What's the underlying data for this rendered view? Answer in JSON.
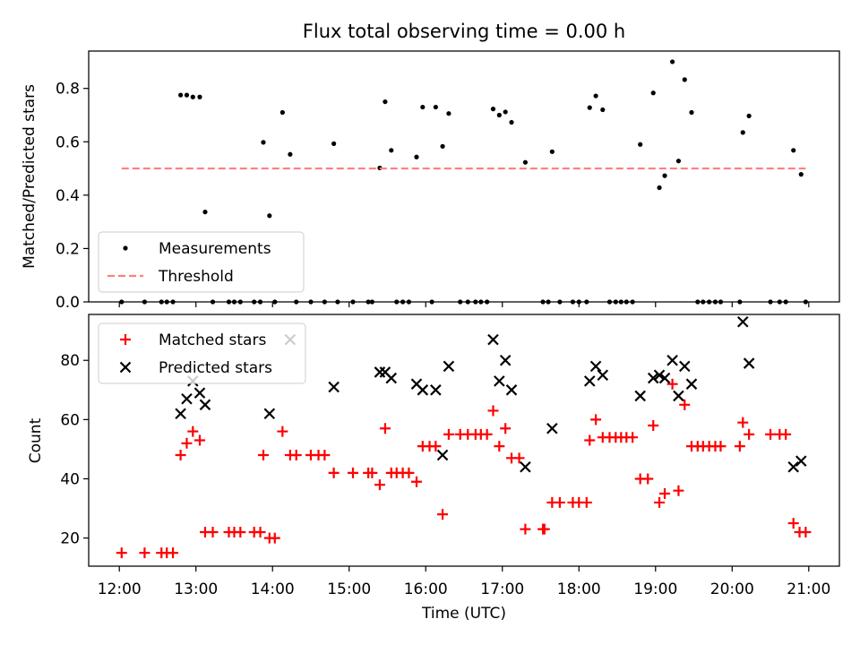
{
  "figure": {
    "title": "Flux total observing time = 0.00 h"
  },
  "chart_data": [
    {
      "type": "scatter",
      "ylabel": "Matched/Predicted stars",
      "xlim": [
        11.6,
        21.4
      ],
      "ylim": [
        0,
        0.94
      ],
      "yticks": [
        0.0,
        0.2,
        0.4,
        0.6,
        0.8
      ],
      "ytick_labels": [
        "0.0",
        "0.2",
        "0.4",
        "0.6",
        "0.8"
      ],
      "legend": {
        "placement": "lower-left",
        "entries": [
          "Measurements",
          "Threshold"
        ]
      },
      "series": [
        {
          "name": "Measurements",
          "color": "#000000",
          "marker": "dot",
          "points": [
            [
              12.03,
              0.0
            ],
            [
              12.33,
              0.0
            ],
            [
              12.55,
              0.0
            ],
            [
              12.62,
              0.0
            ],
            [
              12.7,
              0.0
            ],
            [
              12.8,
              0.775
            ],
            [
              12.88,
              0.775
            ],
            [
              12.96,
              0.768
            ],
            [
              13.05,
              0.768
            ],
            [
              13.12,
              0.337
            ],
            [
              13.22,
              0.0
            ],
            [
              13.43,
              0.0
            ],
            [
              13.5,
              0.0
            ],
            [
              13.58,
              0.0
            ],
            [
              13.76,
              0.0
            ],
            [
              13.84,
              0.0
            ],
            [
              13.88,
              0.598
            ],
            [
              13.96,
              0.323
            ],
            [
              14.03,
              0.0
            ],
            [
              14.13,
              0.71
            ],
            [
              14.23,
              0.553
            ],
            [
              14.31,
              0.0
            ],
            [
              14.5,
              0.0
            ],
            [
              14.68,
              0.0
            ],
            [
              14.8,
              0.593
            ],
            [
              14.85,
              0.0
            ],
            [
              15.05,
              0.0
            ],
            [
              15.25,
              0.0
            ],
            [
              15.3,
              0.0
            ],
            [
              15.4,
              0.502
            ],
            [
              15.47,
              0.75
            ],
            [
              15.55,
              0.568
            ],
            [
              15.62,
              0.0
            ],
            [
              15.7,
              0.0
            ],
            [
              15.78,
              0.0
            ],
            [
              15.88,
              0.543
            ],
            [
              15.96,
              0.73
            ],
            [
              16.08,
              0.0
            ],
            [
              16.13,
              0.73
            ],
            [
              16.22,
              0.583
            ],
            [
              16.3,
              0.706
            ],
            [
              16.45,
              0.0
            ],
            [
              16.55,
              0.0
            ],
            [
              16.65,
              0.0
            ],
            [
              16.72,
              0.0
            ],
            [
              16.8,
              0.0
            ],
            [
              16.88,
              0.723
            ],
            [
              16.96,
              0.7
            ],
            [
              17.04,
              0.712
            ],
            [
              17.12,
              0.673
            ],
            [
              17.3,
              0.523
            ],
            [
              17.53,
              0.0
            ],
            [
              17.6,
              0.0
            ],
            [
              17.65,
              0.563
            ],
            [
              17.75,
              0.0
            ],
            [
              17.92,
              0.0
            ],
            [
              18.0,
              0.0
            ],
            [
              18.1,
              0.0
            ],
            [
              18.14,
              0.728
            ],
            [
              18.22,
              0.772
            ],
            [
              18.31,
              0.72
            ],
            [
              18.4,
              0.0
            ],
            [
              18.48,
              0.0
            ],
            [
              18.55,
              0.0
            ],
            [
              18.62,
              0.0
            ],
            [
              18.7,
              0.0
            ],
            [
              18.8,
              0.59
            ],
            [
              18.97,
              0.783
            ],
            [
              19.05,
              0.428
            ],
            [
              19.12,
              0.473
            ],
            [
              19.22,
              0.9
            ],
            [
              19.3,
              0.528
            ],
            [
              19.38,
              0.833
            ],
            [
              19.47,
              0.71
            ],
            [
              19.55,
              0.0
            ],
            [
              19.62,
              0.0
            ],
            [
              19.7,
              0.0
            ],
            [
              19.78,
              0.0
            ],
            [
              19.85,
              0.0
            ],
            [
              20.1,
              0.0
            ],
            [
              20.14,
              0.635
            ],
            [
              20.22,
              0.697
            ],
            [
              20.5,
              0.0
            ],
            [
              20.62,
              0.0
            ],
            [
              20.7,
              0.0
            ],
            [
              20.8,
              0.568
            ],
            [
              20.9,
              0.478
            ],
            [
              20.96,
              0.0
            ]
          ]
        },
        {
          "name": "Threshold",
          "color": "#ff7f7f",
          "style": "dashed",
          "points": [
            [
              12.03,
              0.5
            ],
            [
              20.96,
              0.5
            ]
          ]
        }
      ]
    },
    {
      "type": "scatter",
      "xlabel": "Time (UTC)",
      "ylabel": "Count",
      "xlim": [
        11.6,
        21.4
      ],
      "ylim": [
        10.5,
        95.5
      ],
      "yticks": [
        20,
        40,
        60,
        80
      ],
      "ytick_labels": [
        "20",
        "40",
        "60",
        "80"
      ],
      "xticks": [
        12,
        13,
        14,
        15,
        16,
        17,
        18,
        19,
        20,
        21
      ],
      "xtick_labels": [
        "12:00",
        "13:00",
        "14:00",
        "15:00",
        "16:00",
        "17:00",
        "18:00",
        "19:00",
        "20:00",
        "21:00"
      ],
      "legend": {
        "placement": "upper-left",
        "entries": [
          "Matched stars",
          "Predicted stars"
        ]
      },
      "series": [
        {
          "name": "Matched stars",
          "color": "#ff0000",
          "marker": "plus",
          "points": [
            [
              12.03,
              15
            ],
            [
              12.33,
              15
            ],
            [
              12.55,
              15
            ],
            [
              12.62,
              15
            ],
            [
              12.7,
              15
            ],
            [
              12.8,
              48
            ],
            [
              12.88,
              52
            ],
            [
              12.96,
              56
            ],
            [
              13.05,
              53
            ],
            [
              13.12,
              22
            ],
            [
              13.22,
              22
            ],
            [
              13.43,
              22
            ],
            [
              13.5,
              22
            ],
            [
              13.58,
              22
            ],
            [
              13.76,
              22
            ],
            [
              13.84,
              22
            ],
            [
              13.88,
              48
            ],
            [
              13.96,
              20
            ],
            [
              14.03,
              20
            ],
            [
              14.13,
              56
            ],
            [
              14.23,
              48
            ],
            [
              14.31,
              48
            ],
            [
              14.5,
              48
            ],
            [
              14.6,
              48
            ],
            [
              14.68,
              48
            ],
            [
              14.8,
              42
            ],
            [
              15.05,
              42
            ],
            [
              15.25,
              42
            ],
            [
              15.3,
              42
            ],
            [
              15.4,
              38
            ],
            [
              15.47,
              57
            ],
            [
              15.55,
              42
            ],
            [
              15.62,
              42
            ],
            [
              15.7,
              42
            ],
            [
              15.78,
              42
            ],
            [
              15.88,
              39
            ],
            [
              15.96,
              51
            ],
            [
              16.05,
              51
            ],
            [
              16.13,
              51
            ],
            [
              16.22,
              28
            ],
            [
              16.3,
              55
            ],
            [
              16.45,
              55
            ],
            [
              16.55,
              55
            ],
            [
              16.65,
              55
            ],
            [
              16.72,
              55
            ],
            [
              16.8,
              55
            ],
            [
              16.88,
              63
            ],
            [
              16.96,
              51
            ],
            [
              17.04,
              57
            ],
            [
              17.12,
              47
            ],
            [
              17.22,
              47
            ],
            [
              17.3,
              23
            ],
            [
              17.53,
              23
            ],
            [
              17.55,
              23
            ],
            [
              17.65,
              32
            ],
            [
              17.75,
              32
            ],
            [
              17.92,
              32
            ],
            [
              18.0,
              32
            ],
            [
              18.1,
              32
            ],
            [
              18.14,
              53
            ],
            [
              18.22,
              60
            ],
            [
              18.31,
              54
            ],
            [
              18.4,
              54
            ],
            [
              18.48,
              54
            ],
            [
              18.55,
              54
            ],
            [
              18.62,
              54
            ],
            [
              18.7,
              54
            ],
            [
              18.8,
              40
            ],
            [
              18.9,
              40
            ],
            [
              18.97,
              58
            ],
            [
              19.05,
              32
            ],
            [
              19.12,
              35
            ],
            [
              19.22,
              72
            ],
            [
              19.3,
              36
            ],
            [
              19.38,
              65
            ],
            [
              19.47,
              51
            ],
            [
              19.55,
              51
            ],
            [
              19.62,
              51
            ],
            [
              19.7,
              51
            ],
            [
              19.78,
              51
            ],
            [
              19.85,
              51
            ],
            [
              20.1,
              51
            ],
            [
              20.14,
              59
            ],
            [
              20.22,
              55
            ],
            [
              20.5,
              55
            ],
            [
              20.62,
              55
            ],
            [
              20.7,
              55
            ],
            [
              20.8,
              25
            ],
            [
              20.88,
              22
            ],
            [
              20.96,
              22
            ]
          ]
        },
        {
          "name": "Predicted stars",
          "color": "#000000",
          "marker": "x",
          "points": [
            [
              12.8,
              62
            ],
            [
              12.88,
              67
            ],
            [
              12.96,
              73
            ],
            [
              13.05,
              69
            ],
            [
              13.12,
              65
            ],
            [
              13.96,
              62
            ],
            [
              14.23,
              87
            ],
            [
              14.8,
              71
            ],
            [
              15.4,
              76
            ],
            [
              15.47,
              76
            ],
            [
              15.55,
              74
            ],
            [
              15.88,
              72
            ],
            [
              15.96,
              70
            ],
            [
              16.13,
              70
            ],
            [
              16.22,
              48
            ],
            [
              16.3,
              78
            ],
            [
              16.88,
              87
            ],
            [
              16.96,
              73
            ],
            [
              17.04,
              80
            ],
            [
              17.12,
              70
            ],
            [
              17.3,
              44
            ],
            [
              17.65,
              57
            ],
            [
              18.14,
              73
            ],
            [
              18.22,
              78
            ],
            [
              18.31,
              75
            ],
            [
              18.8,
              68
            ],
            [
              18.97,
              74
            ],
            [
              19.05,
              75
            ],
            [
              19.12,
              74
            ],
            [
              19.22,
              80
            ],
            [
              19.3,
              68
            ],
            [
              19.38,
              78
            ],
            [
              19.47,
              72
            ],
            [
              20.14,
              93
            ],
            [
              20.22,
              79
            ],
            [
              20.8,
              44
            ],
            [
              20.9,
              46
            ]
          ]
        }
      ]
    }
  ]
}
